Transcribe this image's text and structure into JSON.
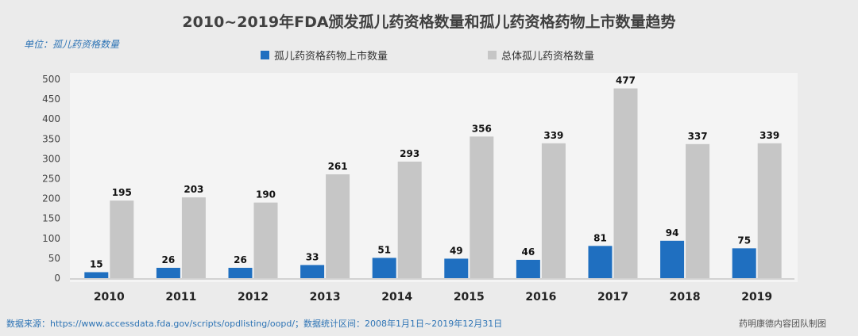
{
  "chart_data": {
    "type": "bar",
    "title": "2010~2019年FDA颁发孤儿药资格数量和孤儿药资格药物上市数量趋势",
    "unit_label": "单位：孤儿药资格数量",
    "categories": [
      "2010",
      "2011",
      "2012",
      "2013",
      "2014",
      "2015",
      "2016",
      "2017",
      "2018",
      "2019"
    ],
    "series": [
      {
        "name": "孤儿药资格药物上市数量",
        "color": "#1f6fc0",
        "values": [
          15,
          26,
          26,
          33,
          51,
          49,
          46,
          81,
          94,
          75
        ]
      },
      {
        "name": "总体孤儿药资格数量",
        "color": "#c6c6c6",
        "values": [
          195,
          203,
          190,
          261,
          293,
          356,
          339,
          477,
          337,
          339
        ]
      }
    ],
    "yticks": [
      0,
      50,
      100,
      150,
      200,
      250,
      300,
      350,
      400,
      450,
      500
    ],
    "ylim": [
      0,
      500
    ],
    "legend_position": "top",
    "grid": false
  },
  "footer": {
    "source": "数据来源：https://www.accessdata.fda.gov/scripts/opdlisting/oopd/；数据统计区间：2008年1月1日~2019年12月31日",
    "credit": "药明康德内容团队制图"
  }
}
